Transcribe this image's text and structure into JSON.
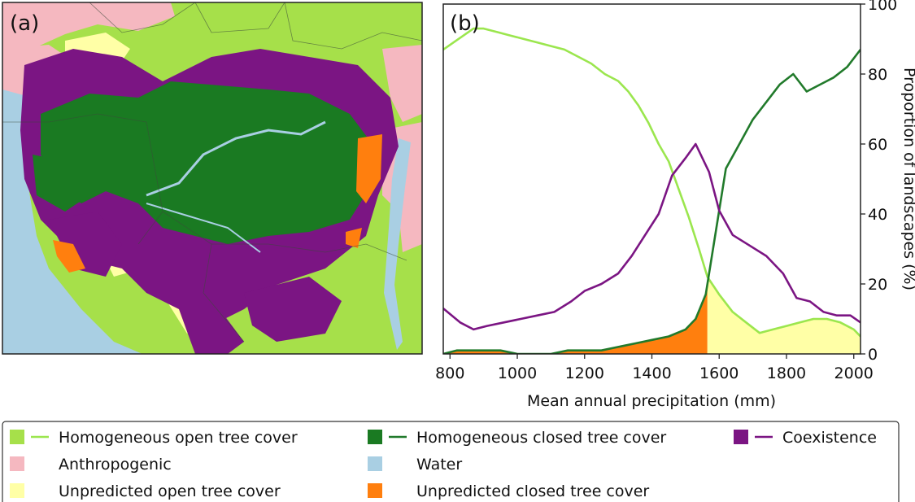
{
  "panels": {
    "a": "(a)",
    "b": "(b)"
  },
  "colors": {
    "open": "#a6e04a",
    "open_line": "#9be64e",
    "closed": "#1a7a22",
    "closed_line": "#217a2b",
    "coexistence": "#7b1583",
    "anthropogenic": "#f5b8c0",
    "water": "#a9cfe3",
    "unpred_open": "#ffffa6",
    "unpred_closed": "#ff7f0e"
  },
  "legend": [
    {
      "key": "open",
      "label": "Homogeneous open tree cover",
      "line": true
    },
    {
      "key": "closed",
      "label": "Homogeneous closed tree cover",
      "line": true
    },
    {
      "key": "coexistence",
      "label": "Coexistence",
      "line": true
    },
    {
      "key": "anthropogenic",
      "label": "Anthropogenic",
      "line": false
    },
    {
      "key": "water",
      "label": "Water",
      "line": false
    },
    {
      "key": "unpred_open",
      "label": "Unpredicted open tree cover",
      "line": false
    },
    {
      "key": "unpred_closed",
      "label": "Unpredicted closed tree cover",
      "line": false
    }
  ],
  "chart_data": {
    "type": "line",
    "title": "",
    "xlabel": "Mean annual precipitation (mm)",
    "ylabel": "Proportion of landscapes (%)",
    "xlim": [
      780,
      2020
    ],
    "ylim": [
      0,
      100
    ],
    "xticks": [
      800,
      1000,
      1200,
      1400,
      1600,
      1800,
      2000
    ],
    "yticks": [
      0,
      20,
      40,
      60,
      80,
      100
    ],
    "y_axis_position": "right",
    "grid": false,
    "series": [
      {
        "key": "open",
        "name": "Homogeneous open tree cover",
        "x": [
          780,
          810,
          840,
          870,
          900,
          940,
          980,
          1020,
          1060,
          1100,
          1140,
          1180,
          1220,
          1260,
          1300,
          1330,
          1360,
          1390,
          1420,
          1450,
          1480,
          1510,
          1540,
          1565,
          1600,
          1640,
          1680,
          1720,
          1760,
          1800,
          1840,
          1880,
          1920,
          1960,
          2000,
          2020
        ],
        "y": [
          87,
          89,
          91,
          93,
          93,
          92,
          91,
          90,
          89,
          88,
          87,
          85,
          83,
          80,
          78,
          75,
          71,
          66,
          60,
          55,
          47,
          39,
          30,
          22,
          17,
          12,
          9,
          6,
          7,
          8,
          9,
          10,
          10,
          9,
          7,
          5
        ]
      },
      {
        "key": "closed",
        "name": "Homogeneous closed tree cover",
        "x": [
          780,
          820,
          860,
          900,
          950,
          1000,
          1050,
          1100,
          1150,
          1200,
          1250,
          1300,
          1350,
          1400,
          1450,
          1500,
          1530,
          1560,
          1590,
          1620,
          1660,
          1700,
          1740,
          1780,
          1820,
          1860,
          1900,
          1940,
          1980,
          2020
        ],
        "y": [
          0,
          1,
          1,
          1,
          1,
          0,
          0,
          0,
          1,
          1,
          1,
          2,
          3,
          4,
          5,
          7,
          10,
          17,
          35,
          53,
          60,
          67,
          72,
          77,
          80,
          75,
          77,
          79,
          82,
          87
        ]
      },
      {
        "key": "coexistence",
        "name": "Coexistence",
        "x": [
          780,
          830,
          870,
          910,
          960,
          1010,
          1060,
          1110,
          1160,
          1200,
          1250,
          1300,
          1340,
          1380,
          1420,
          1460,
          1500,
          1530,
          1570,
          1600,
          1640,
          1690,
          1740,
          1790,
          1830,
          1870,
          1910,
          1950,
          1990,
          2020
        ],
        "y": [
          13,
          9,
          7,
          8,
          9,
          10,
          11,
          12,
          15,
          18,
          20,
          23,
          28,
          34,
          40,
          51,
          56,
          60,
          52,
          41,
          34,
          31,
          28,
          23,
          16,
          15,
          12,
          11,
          11,
          9
        ]
      }
    ],
    "areas": [
      {
        "key": "unpred_closed",
        "name": "Unpredicted closed tree cover",
        "x_range": [
          780,
          1565
        ]
      },
      {
        "key": "unpred_open",
        "name": "Unpredicted open tree cover",
        "x_range": [
          1565,
          2020
        ]
      }
    ]
  }
}
